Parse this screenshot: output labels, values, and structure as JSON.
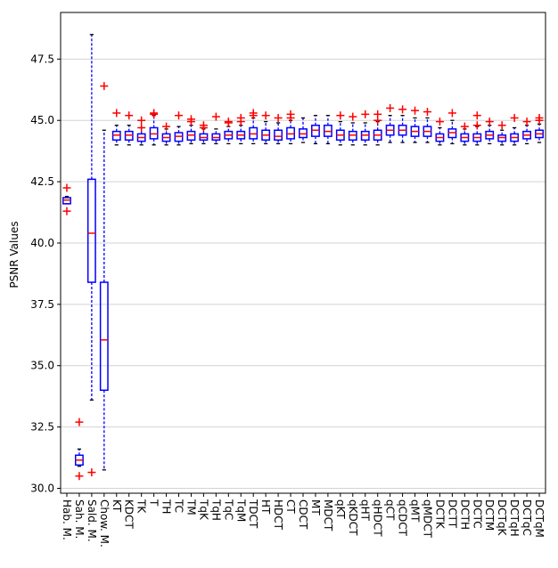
{
  "chart_data": {
    "type": "boxplot",
    "ylabel": "PSNR Values",
    "xlabel": "",
    "title": "",
    "ylim": [
      29.8,
      49.4
    ],
    "yticks": [
      30.0,
      32.5,
      35.0,
      37.5,
      40.0,
      42.5,
      45.0,
      47.5
    ],
    "ytick_labels": [
      "30.0",
      "32.5",
      "35.0",
      "37.5",
      "40.0",
      "42.5",
      "45.0",
      "47.5"
    ],
    "grid": "horizontal",
    "colors": {
      "box": "#0000ff",
      "median": "#ff0000",
      "whisker": "#0000ff",
      "cap": "#000000",
      "flier": "#ff0000",
      "grid": "#d3d3d3"
    },
    "categories": [
      "Hab. M.",
      "Sah. M.",
      "Sald. M.",
      "Chow. M.",
      "KT",
      "KDCT",
      "TK",
      "T",
      "TH",
      "TC",
      "TM",
      "TqK",
      "TqH",
      "TqC",
      "TqM",
      "TDCT",
      "HT",
      "HDCT",
      "CT",
      "CDCT",
      "MT",
      "MDCT",
      "qKT",
      "qKDCT",
      "qHT",
      "qHDCT",
      "qCT",
      "qCDCT",
      "qMT",
      "qMDCT",
      "DCTK",
      "DCTT",
      "DCTH",
      "DCTC",
      "DCTM",
      "DCTqK",
      "DCTqH",
      "DCTqC",
      "DCTqM"
    ],
    "boxes": [
      {
        "whislo": 41.6,
        "q1": 41.6,
        "med": 41.75,
        "q3": 41.85,
        "whishi": 41.9,
        "fliers": [
          42.25,
          41.3
        ]
      },
      {
        "whislo": 30.9,
        "q1": 30.95,
        "med": 31.15,
        "q3": 31.35,
        "whishi": 31.6,
        "fliers": [
          32.7,
          30.5
        ]
      },
      {
        "whislo": 33.6,
        "q1": 38.4,
        "med": 40.4,
        "q3": 42.6,
        "whishi": 48.5,
        "fliers": [
          30.65
        ]
      },
      {
        "whislo": 30.75,
        "q1": 34.0,
        "med": 36.05,
        "q3": 38.4,
        "whishi": 44.6,
        "fliers": [
          46.4
        ]
      },
      {
        "whislo": 44.0,
        "q1": 44.2,
        "med": 44.4,
        "q3": 44.55,
        "whishi": 44.8,
        "fliers": [
          45.3
        ]
      },
      {
        "whislo": 44.0,
        "q1": 44.2,
        "med": 44.4,
        "q3": 44.55,
        "whishi": 44.8,
        "fliers": [
          45.2
        ]
      },
      {
        "whislo": 44.0,
        "q1": 44.15,
        "med": 44.3,
        "q3": 44.45,
        "whishi": 44.7,
        "fliers": [
          45.0,
          44.7
        ]
      },
      {
        "whislo": 44.0,
        "q1": 44.25,
        "med": 44.45,
        "q3": 44.7,
        "whishi": 45.2,
        "fliers": [
          45.3,
          45.25
        ]
      },
      {
        "whislo": 44.0,
        "q1": 44.15,
        "med": 44.3,
        "q3": 44.45,
        "whishi": 44.65,
        "fliers": [
          44.75
        ]
      },
      {
        "whislo": 44.0,
        "q1": 44.15,
        "med": 44.35,
        "q3": 44.5,
        "whishi": 44.75,
        "fliers": [
          45.2
        ]
      },
      {
        "whislo": 44.05,
        "q1": 44.2,
        "med": 44.4,
        "q3": 44.55,
        "whishi": 44.8,
        "fliers": [
          45.05,
          44.95
        ]
      },
      {
        "whislo": 44.05,
        "q1": 44.2,
        "med": 44.3,
        "q3": 44.45,
        "whishi": 44.65,
        "fliers": [
          44.8,
          44.7
        ]
      },
      {
        "whislo": 44.05,
        "q1": 44.2,
        "med": 44.3,
        "q3": 44.45,
        "whishi": 44.65,
        "fliers": [
          45.15
        ]
      },
      {
        "whislo": 44.05,
        "q1": 44.25,
        "med": 44.4,
        "q3": 44.55,
        "whishi": 44.75,
        "fliers": [
          44.95,
          44.9
        ]
      },
      {
        "whislo": 44.05,
        "q1": 44.25,
        "med": 44.4,
        "q3": 44.55,
        "whishi": 44.8,
        "fliers": [
          45.1,
          44.95
        ]
      },
      {
        "whislo": 44.05,
        "q1": 44.25,
        "med": 44.45,
        "q3": 44.7,
        "whishi": 45.1,
        "fliers": [
          45.3,
          45.2
        ]
      },
      {
        "whislo": 44.05,
        "q1": 44.2,
        "med": 44.4,
        "q3": 44.6,
        "whishi": 44.95,
        "fliers": [
          45.2
        ]
      },
      {
        "whislo": 44.05,
        "q1": 44.2,
        "med": 44.35,
        "q3": 44.6,
        "whishi": 44.9,
        "fliers": [
          45.1
        ]
      },
      {
        "whislo": 44.05,
        "q1": 44.25,
        "med": 44.45,
        "q3": 44.7,
        "whishi": 45.0,
        "fliers": [
          45.25,
          45.1
        ]
      },
      {
        "whislo": 44.1,
        "q1": 44.3,
        "med": 44.45,
        "q3": 44.65,
        "whishi": 45.1,
        "fliers": []
      },
      {
        "whislo": 44.05,
        "q1": 44.35,
        "med": 44.6,
        "q3": 44.8,
        "whishi": 45.2,
        "fliers": []
      },
      {
        "whislo": 44.05,
        "q1": 44.35,
        "med": 44.55,
        "q3": 44.8,
        "whishi": 45.2,
        "fliers": []
      },
      {
        "whislo": 44.0,
        "q1": 44.2,
        "med": 44.4,
        "q3": 44.6,
        "whishi": 44.95,
        "fliers": [
          45.2
        ]
      },
      {
        "whislo": 44.0,
        "q1": 44.2,
        "med": 44.4,
        "q3": 44.55,
        "whishi": 44.9,
        "fliers": [
          45.15
        ]
      },
      {
        "whislo": 44.0,
        "q1": 44.2,
        "med": 44.4,
        "q3": 44.55,
        "whishi": 44.9,
        "fliers": [
          45.25
        ]
      },
      {
        "whislo": 44.0,
        "q1": 44.2,
        "med": 44.4,
        "q3": 44.6,
        "whishi": 44.95,
        "fliers": [
          45.25,
          45.0
        ]
      },
      {
        "whislo": 44.1,
        "q1": 44.4,
        "med": 44.6,
        "q3": 44.8,
        "whishi": 45.2,
        "fliers": [
          45.5
        ]
      },
      {
        "whislo": 44.1,
        "q1": 44.4,
        "med": 44.6,
        "q3": 44.8,
        "whishi": 45.2,
        "fliers": [
          45.45
        ]
      },
      {
        "whislo": 44.1,
        "q1": 44.35,
        "med": 44.55,
        "q3": 44.75,
        "whishi": 45.1,
        "fliers": [
          45.4
        ]
      },
      {
        "whislo": 44.1,
        "q1": 44.35,
        "med": 44.55,
        "q3": 44.75,
        "whishi": 45.1,
        "fliers": [
          45.35
        ]
      },
      {
        "whislo": 44.0,
        "q1": 44.15,
        "med": 44.3,
        "q3": 44.45,
        "whishi": 44.7,
        "fliers": [
          44.95
        ]
      },
      {
        "whislo": 44.05,
        "q1": 44.3,
        "med": 44.5,
        "q3": 44.65,
        "whishi": 45.0,
        "fliers": [
          45.3
        ]
      },
      {
        "whislo": 44.0,
        "q1": 44.15,
        "med": 44.3,
        "q3": 44.45,
        "whishi": 44.65,
        "fliers": [
          44.75
        ]
      },
      {
        "whislo": 44.0,
        "q1": 44.15,
        "med": 44.3,
        "q3": 44.45,
        "whishi": 44.75,
        "fliers": [
          45.2,
          44.8
        ]
      },
      {
        "whislo": 44.05,
        "q1": 44.25,
        "med": 44.4,
        "q3": 44.55,
        "whishi": 44.8,
        "fliers": [
          44.95
        ]
      },
      {
        "whislo": 44.0,
        "q1": 44.15,
        "med": 44.3,
        "q3": 44.4,
        "whishi": 44.6,
        "fliers": [
          44.8
        ]
      },
      {
        "whislo": 44.0,
        "q1": 44.15,
        "med": 44.3,
        "q3": 44.45,
        "whishi": 44.7,
        "fliers": [
          45.1
        ]
      },
      {
        "whislo": 44.05,
        "q1": 44.25,
        "med": 44.4,
        "q3": 44.55,
        "whishi": 44.8,
        "fliers": [
          44.95
        ]
      },
      {
        "whislo": 44.1,
        "q1": 44.3,
        "med": 44.45,
        "q3": 44.6,
        "whishi": 44.85,
        "fliers": [
          45.1,
          45.0
        ]
      }
    ]
  }
}
